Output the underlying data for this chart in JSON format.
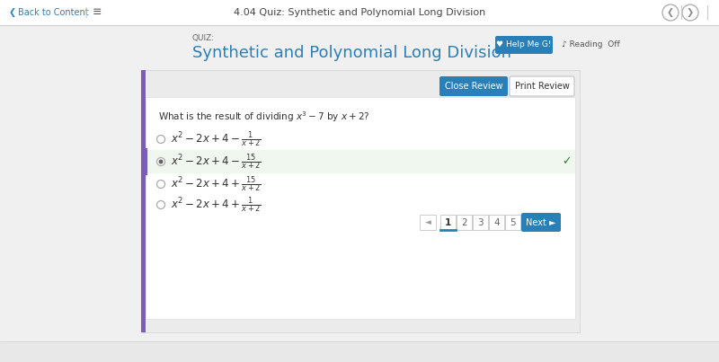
{
  "title_bar_text": "4.04 Quiz: Synthetic and Polynomial Long Division",
  "back_text": "Back to Content",
  "quiz_label": "QUIZ:",
  "quiz_title": "Synthetic and Polynomial Long Division",
  "help_text": "♥ Help Me G!",
  "reading_text": "♪ Reading  Off",
  "close_btn": "Close Review",
  "print_btn": "Print Review",
  "question": "What is the result of dividing $x^3 - 7$ by $x + 2$?",
  "options": [
    "$x^2 - 2x + 4 - \\frac{1}{x+2}$",
    "$x^2 - 2x + 4 - \\frac{15}{x+2}$",
    "$x^2 - 2x + 4 + \\frac{15}{x+2}$",
    "$x^2 - 2x + 4 + \\frac{1}{x+2}$"
  ],
  "correct_index": 1,
  "page_labels": [
    "1",
    "2",
    "3",
    "4",
    "5"
  ],
  "bg_color": "#f0f0f0",
  "white": "#ffffff",
  "top_bar_bg": "#ffffff",
  "card_bg": "#f5f5f5",
  "inner_card_bg": "#ffffff",
  "quiz_title_color": "#2980b9",
  "close_btn_bg": "#2980b9",
  "correct_bg": "#f0f7ee",
  "correct_left_border": "#7c5cbf",
  "check_color": "#2e7d32",
  "nav_active_bg": "#2980b9",
  "next_btn_bg": "#2980b9",
  "text_color": "#333333",
  "gray_text": "#666666",
  "help_btn_bg": "#2980b9",
  "help_btn_color": "#ffffff"
}
